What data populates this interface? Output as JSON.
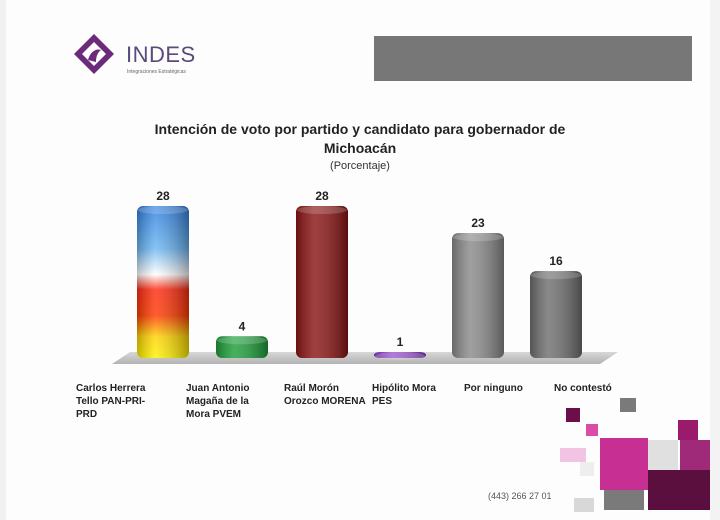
{
  "brand": {
    "name": "INDES",
    "tagline": "Integraciones Estratégicas"
  },
  "title_line1": "Intención de voto por partido y candidato para gobernador de",
  "title_line2": "Michoacán",
  "subtitle": "(Porcentaje)",
  "footer": {
    "phone": "(443) 266 27 01"
  },
  "colors": {
    "brand": "#6b2a7a",
    "morena": "#8b1414",
    "pvem": "#1e9e3a",
    "pes": "#8a3ac8",
    "gray": "#8a8a8a",
    "floor": "#bdbdbd"
  },
  "chart_data": {
    "type": "bar",
    "title": "Intención de voto por partido y candidato para gobernador de Michoacán",
    "subtitle": "(Porcentaje)",
    "categories": [
      [
        "Carlos Herrera",
        "Tello PAN-PRI-",
        "PRD"
      ],
      [
        "Juan Antonio",
        "Magaña de la",
        "Mora PVEM"
      ],
      [
        "Raúl Morón",
        "Orozco MORENA"
      ],
      [
        "Hipólito Mora",
        "PES"
      ],
      [
        "Por ninguno"
      ],
      [
        "No contestó"
      ]
    ],
    "values": [
      28,
      4,
      28,
      1,
      23,
      16
    ],
    "data_labels": [
      "28",
      "4",
      "28",
      "1",
      "23",
      "16"
    ],
    "bar_colors": [
      "gradient-blue-red-yellow",
      "#1e9e3a",
      "#8b1414",
      "#8a3ac8",
      "#8a8a8a",
      "#6f6f6f"
    ],
    "ylim": [
      0,
      30
    ],
    "grid": false,
    "legend": "none"
  }
}
